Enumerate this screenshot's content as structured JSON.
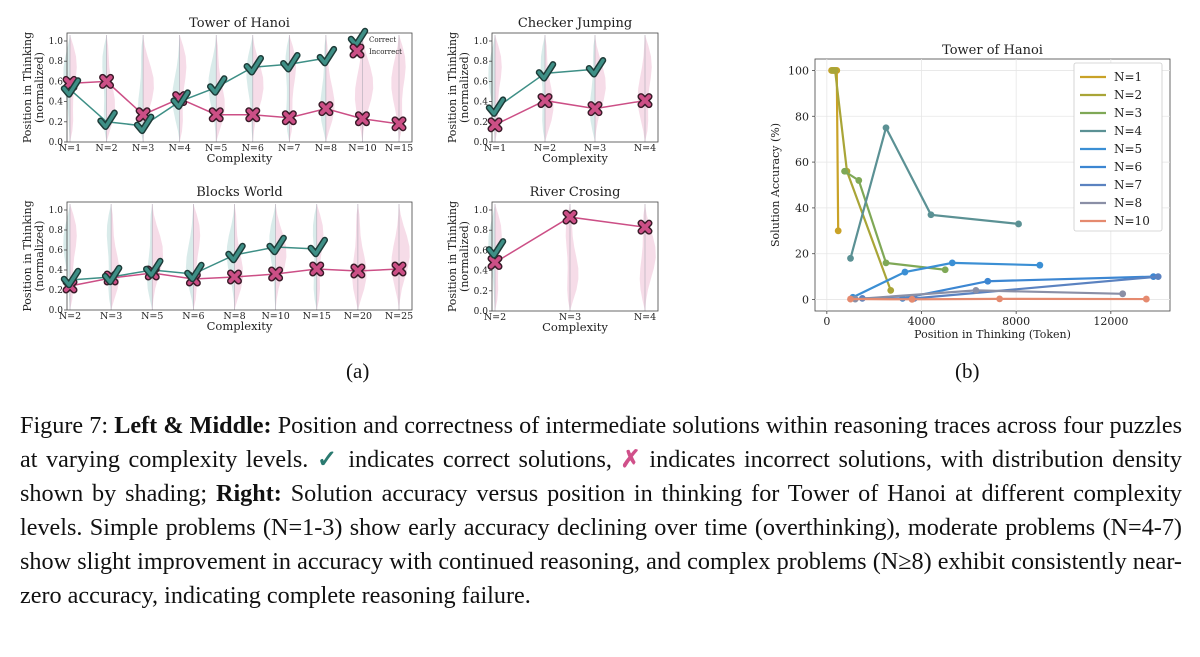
{
  "figure": {
    "sublabel_a": "(a)",
    "sublabel_b": "(b)",
    "caption": {
      "label": "Figure 7:",
      "lead_bold": "Left & Middle:",
      "text1": "Position and correctness of intermediate solutions within reasoning traces across four puzzles at varying complexity levels.",
      "check_symbol": "✓",
      "text2": "indicates correct solutions,",
      "cross_symbol": "✗",
      "text3": "indicates incorrect solutions, with distribution density shown by shading;",
      "right_bold": "Right:",
      "text4": "Solution accuracy versus position in thinking for Tower of Hanoi at different complexity levels. Simple problems (N=1-3) show early accuracy declining over time (overthinking), moderate problems (N=4-7) show slight improvement in accuracy with continued reasoning, and complex problems (N≥8) exhibit consistently near-zero accuracy, indicating complete reasoning failure."
    }
  },
  "colors": {
    "correct": "#3e8f86",
    "incorrect": "#cc4f86",
    "correct_shade": "#cfe6e5",
    "incorrect_shade": "#f4d3e2",
    "mix_shade": "#d9d3de"
  },
  "chart_data": [
    {
      "type": "scatter",
      "title": "Tower of Hanoi",
      "xlabel": "Complexity",
      "ylabel": "Position in Thinking (normalized)",
      "ylim": [
        0,
        1
      ],
      "yticks": [
        "0.0",
        "0.2",
        "0.4",
        "0.6",
        "0.8",
        "1.0"
      ],
      "categories": [
        "N=1",
        "N=2",
        "N=3",
        "N=4",
        "N=5",
        "N=6",
        "N=7",
        "N=8",
        "N=10",
        "N=15"
      ],
      "legend": [
        "Correct",
        "Incorrect"
      ],
      "legend_position": "top-right",
      "series": [
        {
          "name": "Correct",
          "values": [
            0.52,
            0.2,
            0.16,
            0.4,
            0.54,
            0.74,
            0.77,
            0.83,
            null,
            null
          ]
        },
        {
          "name": "Incorrect",
          "values": [
            0.58,
            0.6,
            0.27,
            0.43,
            0.27,
            0.27,
            0.24,
            0.33,
            0.23,
            0.18
          ]
        }
      ]
    },
    {
      "type": "scatter",
      "title": "Checker Jumping",
      "xlabel": "Complexity",
      "ylabel": "Position in Thinking (normalized)",
      "ylim": [
        0,
        1
      ],
      "yticks": [
        "0.0",
        "0.2",
        "0.4",
        "0.6",
        "0.8",
        "1.0"
      ],
      "categories": [
        "N=1",
        "N=2",
        "N=3",
        "N=4"
      ],
      "series": [
        {
          "name": "Correct",
          "values": [
            0.33,
            0.68,
            0.72,
            null
          ]
        },
        {
          "name": "Incorrect",
          "values": [
            0.17,
            0.41,
            0.33,
            0.41
          ]
        }
      ]
    },
    {
      "type": "scatter",
      "title": "Blocks World",
      "xlabel": "Complexity",
      "ylabel": "Position in Thinking (normalized)",
      "ylim": [
        0,
        1
      ],
      "yticks": [
        "0.0",
        "0.2",
        "0.4",
        "0.6",
        "0.8",
        "1.0"
      ],
      "categories": [
        "N=2",
        "N=3",
        "N=5",
        "N=6",
        "N=8",
        "N=10",
        "N=15",
        "N=20",
        "N=25"
      ],
      "series": [
        {
          "name": "Correct",
          "values": [
            0.3,
            0.33,
            0.4,
            0.36,
            0.55,
            0.63,
            0.61,
            null,
            null
          ]
        },
        {
          "name": "Incorrect",
          "values": [
            0.24,
            0.32,
            0.37,
            0.31,
            0.33,
            0.36,
            0.41,
            0.39,
            0.41
          ]
        }
      ]
    },
    {
      "type": "scatter",
      "title": "River Crosing",
      "xlabel": "Complexity",
      "ylabel": "Position in Thinking (normalized)",
      "ylim": [
        0,
        1
      ],
      "yticks": [
        "0.0",
        "0.2",
        "0.4",
        "0.6",
        "0.8",
        "1.0"
      ],
      "categories": [
        "N=2",
        "N=3",
        "N=4"
      ],
      "series": [
        {
          "name": "Correct",
          "values": [
            0.6,
            null,
            null
          ]
        },
        {
          "name": "Incorrect",
          "values": [
            0.48,
            0.93,
            0.83
          ]
        }
      ]
    },
    {
      "type": "line",
      "title": "Tower of Hanoi",
      "xlabel": "Position in Thinking (Token)",
      "ylabel": "Solution Accuracy (%)",
      "xlim": [
        -500,
        14500
      ],
      "ylim": [
        -5,
        105
      ],
      "xticks": [
        0,
        4000,
        8000,
        12000
      ],
      "yticks": [
        0,
        20,
        40,
        60,
        80,
        100
      ],
      "grid": true,
      "legend_position": "top-right",
      "series": [
        {
          "name": "N=1",
          "color": "#c9a227",
          "points": [
            [
              200,
              100
            ],
            [
              300,
              100
            ],
            [
              420,
              100
            ],
            [
              480,
              30
            ]
          ]
        },
        {
          "name": "N=2",
          "color": "#a9a537",
          "points": [
            [
              250,
              100
            ],
            [
              350,
              100
            ],
            [
              850,
              56
            ],
            [
              2700,
              4
            ]
          ]
        },
        {
          "name": "N=3",
          "color": "#7fa856",
          "points": [
            [
              750,
              56
            ],
            [
              1350,
              52
            ],
            [
              2500,
              16
            ],
            [
              5000,
              13
            ]
          ]
        },
        {
          "name": "N=4",
          "color": "#5b9194",
          "points": [
            [
              1000,
              18
            ],
            [
              2500,
              75
            ],
            [
              4400,
              37
            ],
            [
              8100,
              33
            ]
          ]
        },
        {
          "name": "N=5",
          "color": "#3b8fd4",
          "points": [
            [
              1100,
              1
            ],
            [
              3300,
              12
            ],
            [
              5300,
              16
            ],
            [
              9000,
              15
            ]
          ]
        },
        {
          "name": "N=6",
          "color": "#3c86d2",
          "points": [
            [
              3200,
              0.5
            ],
            [
              6800,
              8
            ],
            [
              13800,
              10
            ]
          ]
        },
        {
          "name": "N=7",
          "color": "#5b82c0",
          "points": [
            [
              1500,
              0.5
            ],
            [
              3700,
              0.5
            ],
            [
              14000,
              10
            ]
          ]
        },
        {
          "name": "N=8",
          "color": "#8a8fa6",
          "points": [
            [
              1200,
              0.2
            ],
            [
              6300,
              4
            ],
            [
              12500,
              2.5
            ]
          ]
        },
        {
          "name": "N=10",
          "color": "#e58a6f",
          "points": [
            [
              1000,
              0.2
            ],
            [
              3600,
              0.1
            ],
            [
              7300,
              0.3
            ],
            [
              13500,
              0.2
            ]
          ]
        }
      ]
    }
  ]
}
